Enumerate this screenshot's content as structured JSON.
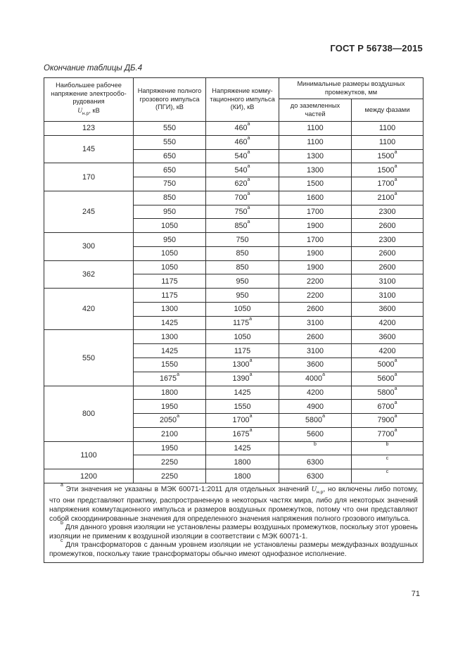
{
  "page": {
    "header": "ГОСТ Р 56738—2015",
    "caption": "Окончание таблицы ДБ.4",
    "page_number": "71"
  },
  "table": {
    "headers": {
      "col1_lines": "Наибольшее рабочее\nнапряжение электрообо-\nрудования",
      "col1_sym": "U",
      "col1_sub": "н.р",
      "col1_unit": ", кВ",
      "col2_lines": "Напряжение полного\nгрозового импульса\n(ПГИ), кВ",
      "col3_lines": "Напряжение комму-\nтационного импульса\n(КИ), кВ",
      "group_lines": "Минимальные размеры воздушных\nпромежутков, мм",
      "col4_lines": "до заземленных\nчастей",
      "col5_lines": "между фазами"
    },
    "groups": [
      {
        "u": "123",
        "rows": [
          [
            "550",
            "460^a",
            "1100",
            "1100"
          ]
        ]
      },
      {
        "u": "145",
        "rows": [
          [
            "550",
            "460^a",
            "1100",
            "1100"
          ],
          [
            "650",
            "540^a",
            "1300",
            "1500^a"
          ]
        ]
      },
      {
        "u": "170",
        "rows": [
          [
            "650",
            "540^a",
            "1300",
            "1500^a"
          ],
          [
            "750",
            "620^a",
            "1500",
            "1700^a"
          ]
        ]
      },
      {
        "u": "245",
        "rows": [
          [
            "850",
            "700^a",
            "1600",
            "2100^a"
          ],
          [
            "950",
            "750^a",
            "1700",
            "2300"
          ],
          [
            "1050",
            "850^a",
            "1900",
            "2600"
          ]
        ]
      },
      {
        "u": "300",
        "rows": [
          [
            "950",
            "750",
            "1700",
            "2300"
          ],
          [
            "1050",
            "850",
            "1900",
            "2600"
          ]
        ]
      },
      {
        "u": "362",
        "rows": [
          [
            "1050",
            "850",
            "1900",
            "2600"
          ],
          [
            "1175",
            "950",
            "2200",
            "3100"
          ]
        ]
      },
      {
        "u": "420",
        "rows": [
          [
            "1175",
            "950",
            "2200",
            "3100"
          ],
          [
            "1300",
            "1050",
            "2600",
            "3600"
          ],
          [
            "1425",
            "1175^a",
            "3100",
            "4200"
          ]
        ]
      },
      {
        "u": "550",
        "rows": [
          [
            "1300",
            "1050",
            "2600",
            "3600"
          ],
          [
            "1425",
            "1175",
            "3100",
            "4200"
          ],
          [
            "1550",
            "1300^a",
            "3600",
            "5000^a"
          ],
          [
            "1675^a",
            "1390^a",
            "4000^a",
            "5600^a"
          ]
        ]
      },
      {
        "u": "800",
        "rows": [
          [
            "1800",
            "1425",
            "4200",
            "5800^a"
          ],
          [
            "1950",
            "1550",
            "4900",
            "6700^a"
          ],
          [
            "2050^a",
            "1700^a",
            "5800^a",
            "7900^a"
          ],
          [
            "2100",
            "1675^a",
            "5600",
            "7700^a"
          ]
        ]
      },
      {
        "u": "1100",
        "rows": [
          [
            "1950",
            "1425",
            "^b",
            "^b"
          ],
          [
            "2250",
            "1800",
            "6300",
            "^c"
          ]
        ]
      },
      {
        "u": "1200",
        "rows": [
          [
            "2250",
            "1800",
            "6300",
            "^c"
          ]
        ]
      }
    ],
    "footnotes": [
      {
        "runs": [
          {
            "sup": "a"
          },
          {
            "t": " Эти значения не указаны в МЭК 60071-1:2011 для отдельных значений "
          },
          {
            "i": "U"
          },
          {
            "sub": "н.р"
          },
          {
            "t": ", но включены либо потому, что они представляют практику, распространенную в некоторых частях мира, либо для некоторых значений напряжения коммутационного импульса и размеров воздушных промежутков, потому что они представляют собой скоординированные значения для определенного значения напряжения полного грозового импульса."
          }
        ]
      },
      {
        "runs": [
          {
            "sup": "b"
          },
          {
            "t": " Для данного уровня изоляции не установлены размеры воздушных промежутков, поскольку этот уровень изоляции не применим к воздушной изоляции в соответствии с МЭК 60071-1."
          }
        ]
      },
      {
        "runs": [
          {
            "sup": "c"
          },
          {
            "t": " Для трансформаторов с данным уровнем изоляции не установлены размеры междуфазных воздушных промежутков, поскольку такие трансформаторы обычно имеют однофазное исполнение."
          }
        ]
      }
    ]
  }
}
